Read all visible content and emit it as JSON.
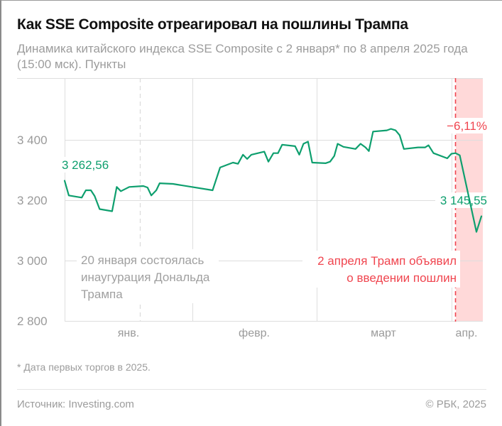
{
  "header": {
    "title": "Как SSE Composite отреагировал на пошлины Трампа",
    "subtitle": "Динамика китайского индекса SSE Composite с 2 января* по 8 апреля 2025 года (15:00 мск). Пункты"
  },
  "footer": {
    "footnote": "* Дата первых торгов в 2025.",
    "source": "Источник: Investing.com",
    "copyright": "© РБК, 2025"
  },
  "colors": {
    "line": "#0e9f6e",
    "accent_red": "#f0454f",
    "highlight_band": "#ffd9d9",
    "grid": "#dedede",
    "text_gray": "#9a9a9a"
  },
  "chart_data": {
    "type": "line",
    "title": "Как SSE Composite отреагировал на пошлины Трампа",
    "subtitle": "Динамика китайского индекса SSE Composite с 2 января* по 8 апреля 2025 года (15:00 мск). Пункты",
    "xlabel": "",
    "ylabel": "Пункты",
    "ylim": [
      2800,
      3600
    ],
    "yticks": [
      2800,
      3000,
      3200,
      3400
    ],
    "ytick_labels": [
      "2 800",
      "3 000",
      "3 200",
      "3 400"
    ],
    "xtick_labels": [
      "янв.",
      "февр.",
      "март",
      "апр."
    ],
    "grid": true,
    "legend": null,
    "series": [
      {
        "name": "SSE Composite",
        "points": [
          {
            "x": 0.0,
            "y": 3262.56
          },
          {
            "x": 0.01,
            "y": 3214
          },
          {
            "x": 0.041,
            "y": 3207
          },
          {
            "x": 0.051,
            "y": 3231
          },
          {
            "x": 0.063,
            "y": 3231
          },
          {
            "x": 0.072,
            "y": 3212
          },
          {
            "x": 0.084,
            "y": 3169
          },
          {
            "x": 0.114,
            "y": 3162
          },
          {
            "x": 0.125,
            "y": 3242
          },
          {
            "x": 0.135,
            "y": 3228
          },
          {
            "x": 0.155,
            "y": 3242
          },
          {
            "x": 0.189,
            "y": 3245
          },
          {
            "x": 0.199,
            "y": 3240
          },
          {
            "x": 0.208,
            "y": 3214
          },
          {
            "x": 0.22,
            "y": 3231
          },
          {
            "x": 0.228,
            "y": 3254
          },
          {
            "x": 0.26,
            "y": 3252
          },
          {
            "x": 0.355,
            "y": 3231
          },
          {
            "x": 0.373,
            "y": 3306
          },
          {
            "x": 0.404,
            "y": 3322
          },
          {
            "x": 0.416,
            "y": 3318
          },
          {
            "x": 0.428,
            "y": 3348
          },
          {
            "x": 0.438,
            "y": 3334
          },
          {
            "x": 0.448,
            "y": 3348
          },
          {
            "x": 0.479,
            "y": 3358
          },
          {
            "x": 0.489,
            "y": 3325
          },
          {
            "x": 0.501,
            "y": 3353
          },
          {
            "x": 0.512,
            "y": 3353
          },
          {
            "x": 0.522,
            "y": 3381
          },
          {
            "x": 0.553,
            "y": 3376
          },
          {
            "x": 0.563,
            "y": 3348
          },
          {
            "x": 0.573,
            "y": 3384
          },
          {
            "x": 0.584,
            "y": 3391
          },
          {
            "x": 0.594,
            "y": 3322
          },
          {
            "x": 0.626,
            "y": 3320
          },
          {
            "x": 0.637,
            "y": 3325
          },
          {
            "x": 0.647,
            "y": 3344
          },
          {
            "x": 0.655,
            "y": 3384
          },
          {
            "x": 0.669,
            "y": 3374
          },
          {
            "x": 0.698,
            "y": 3367
          },
          {
            "x": 0.71,
            "y": 3384
          },
          {
            "x": 0.722,
            "y": 3372
          },
          {
            "x": 0.73,
            "y": 3360
          },
          {
            "x": 0.74,
            "y": 3424
          },
          {
            "x": 0.773,
            "y": 3428
          },
          {
            "x": 0.783,
            "y": 3433
          },
          {
            "x": 0.794,
            "y": 3428
          },
          {
            "x": 0.804,
            "y": 3412
          },
          {
            "x": 0.814,
            "y": 3367
          },
          {
            "x": 0.848,
            "y": 3372
          },
          {
            "x": 0.865,
            "y": 3372
          },
          {
            "x": 0.873,
            "y": 3379
          },
          {
            "x": 0.885,
            "y": 3353
          },
          {
            "x": 0.918,
            "y": 3336
          },
          {
            "x": 0.928,
            "y": 3351
          },
          {
            "x": 0.938,
            "y": 3353
          },
          {
            "x": 0.948,
            "y": 3346
          },
          {
            "x": 0.988,
            "y": 3094
          },
          {
            "x": 1.0,
            "y": 3145.55
          }
        ]
      }
    ],
    "annotations": {
      "start_value": "3 262,56",
      "end_value": "3 145,55",
      "change": "−6,11%",
      "inauguration": [
        "20 января состоялась",
        "инаугурация Дональда",
        "Трампа"
      ],
      "tariffs": [
        "2 апреля Трамп объявил",
        "о введении пошлин"
      ]
    }
  }
}
